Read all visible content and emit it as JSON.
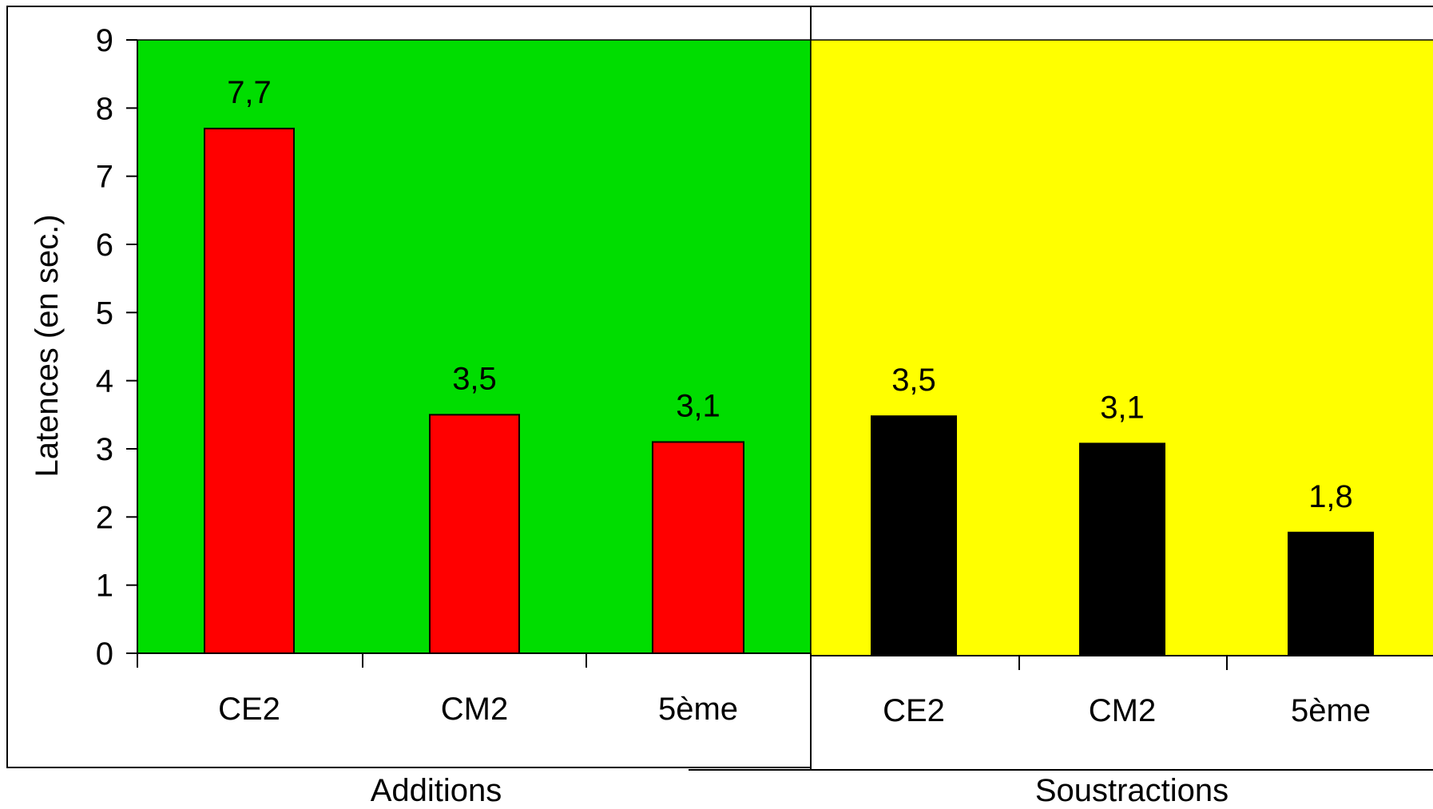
{
  "chart_data": [
    {
      "type": "bar",
      "title": "Additions",
      "ylabel": "Latences (en sec.)",
      "categories": [
        "CE2",
        "CM2",
        "5ème"
      ],
      "values": [
        7.7,
        3.5,
        3.1
      ],
      "value_labels": [
        "7,7",
        "3,5",
        "3,1"
      ],
      "yticks": [
        "0",
        "1",
        "2",
        "3",
        "4",
        "5",
        "6",
        "7",
        "8",
        "9"
      ],
      "ylim": [
        0,
        9
      ],
      "background": "#00dd00",
      "bar_color": "#ff0000",
      "label_color": "#000000",
      "grid": false
    },
    {
      "type": "bar",
      "title": "Soustractions",
      "categories": [
        "CE2",
        "CM2",
        "5ème"
      ],
      "values": [
        3.5,
        3.1,
        1.8
      ],
      "value_labels": [
        "3,5",
        "3,1",
        "1,8"
      ],
      "ylim": [
        0,
        9
      ],
      "background": "#ffff00",
      "bar_color": "#000000",
      "label_color": "#000000",
      "grid": false
    }
  ]
}
